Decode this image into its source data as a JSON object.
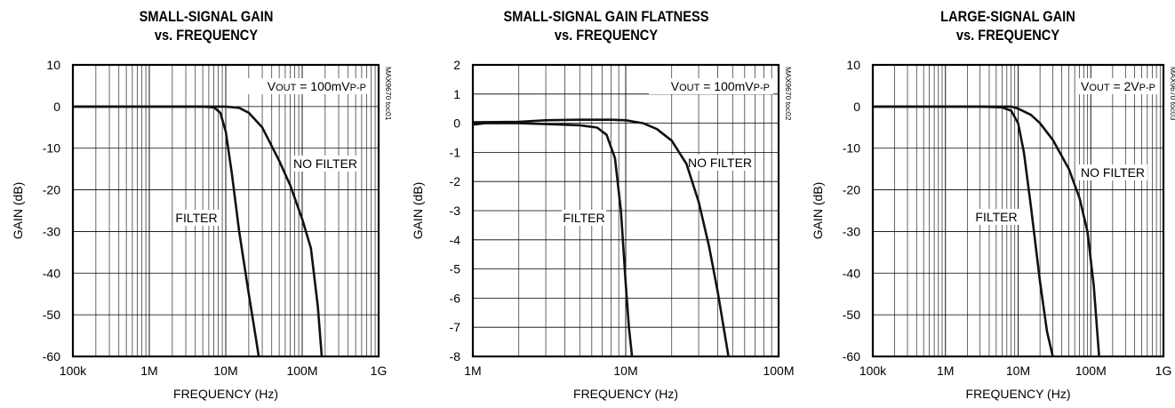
{
  "chart_data": [
    {
      "type": "line",
      "title": [
        "SMALL-SIGNAL GAIN",
        "vs. FREQUENCY"
      ],
      "xlabel": "FREQUENCY (Hz)",
      "ylabel": "GAIN (dB)",
      "x_scale": "log",
      "xlim": [
        100000,
        1000000000
      ],
      "ylim": [
        -60,
        10
      ],
      "x_ticks": [
        100000,
        1000000,
        10000000,
        100000000,
        1000000000
      ],
      "x_tick_labels": [
        "100k",
        "1M",
        "10M",
        "100M",
        "1G"
      ],
      "y_ticks": [
        10,
        0,
        -10,
        -20,
        -30,
        -40,
        -50,
        -60
      ],
      "y_tick_labels": [
        "10",
        "0",
        "-10",
        "-20",
        "-30",
        "-40",
        "-50",
        "-60"
      ],
      "grid": true,
      "annotation": {
        "prefix": "V",
        "sub1": "OUT",
        "mid": " = 100mV",
        "sub2": "P-P"
      },
      "code": "MAX9670 toc01",
      "series": [
        {
          "name": "FILTER",
          "x": [
            100000,
            2000000,
            5000000,
            7000000,
            8500000,
            10000000,
            12000000,
            15000000,
            20000000,
            25000000,
            27000000
          ],
          "y": [
            0,
            0,
            0,
            -0.2,
            -1.5,
            -6,
            -16,
            -30,
            -45,
            -56,
            -60
          ]
        },
        {
          "name": "NO FILTER",
          "x": [
            100000,
            5000000,
            10000000,
            15000000,
            20000000,
            30000000,
            50000000,
            70000000,
            100000000,
            130000000,
            160000000,
            180000000
          ],
          "y": [
            0,
            0,
            0,
            -0.3,
            -1.5,
            -5,
            -13,
            -19,
            -27,
            -34,
            -48,
            -60
          ]
        }
      ],
      "series_labels": [
        "FILTER",
        "NO FILTER"
      ]
    },
    {
      "type": "line",
      "title": [
        "SMALL-SIGNAL GAIN FLATNESS",
        "vs. FREQUENCY"
      ],
      "xlabel": "FREQUENCY (Hz)",
      "ylabel": "GAIN (dB)",
      "x_scale": "log",
      "xlim": [
        1000000,
        100000000
      ],
      "ylim": [
        -8,
        2
      ],
      "x_ticks": [
        1000000,
        10000000,
        100000000
      ],
      "x_tick_labels": [
        "1M",
        "10M",
        "100M"
      ],
      "y_ticks": [
        2,
        1,
        0,
        -1,
        -2,
        -3,
        -4,
        -5,
        -6,
        -7,
        -8
      ],
      "y_tick_labels": [
        "2",
        "1",
        "0",
        "-1",
        "-2",
        "-3",
        "-4",
        "-5",
        "-6",
        "-7",
        "-8"
      ],
      "grid": true,
      "annotation": {
        "prefix": "V",
        "sub1": "OUT",
        "mid": " = 100mV",
        "sub2": "P-P"
      },
      "code": "MAX9670 toc02",
      "series": [
        {
          "name": "FILTER",
          "x": [
            1000000,
            1200000,
            2000000,
            3000000,
            5000000,
            6500000,
            7500000,
            8500000,
            9300000,
            10000000,
            10500000,
            11000000
          ],
          "y": [
            -0.05,
            0,
            0,
            -0.03,
            -0.07,
            -0.15,
            -0.4,
            -1.2,
            -3,
            -5.5,
            -7,
            -8
          ]
        },
        {
          "name": "NO FILTER",
          "x": [
            1000000,
            2000000,
            3000000,
            5000000,
            8000000,
            10000000,
            13000000,
            16000000,
            20000000,
            25000000,
            30000000,
            35000000,
            40000000,
            47000000
          ],
          "y": [
            0.03,
            0.05,
            0.1,
            0.12,
            0.12,
            0.1,
            0,
            -0.2,
            -0.6,
            -1.4,
            -2.7,
            -4.2,
            -5.8,
            -8
          ]
        }
      ],
      "series_labels": [
        "FILTER",
        "NO FILTER"
      ]
    },
    {
      "type": "line",
      "title": [
        "LARGE-SIGNAL GAIN",
        "vs. FREQUENCY"
      ],
      "xlabel": "FREQUENCY (Hz)",
      "ylabel": "GAIN (dB)",
      "x_scale": "log",
      "xlim": [
        100000,
        1000000000
      ],
      "ylim": [
        -60,
        10
      ],
      "x_ticks": [
        100000,
        1000000,
        10000000,
        100000000,
        1000000000
      ],
      "x_tick_labels": [
        "100k",
        "1M",
        "10M",
        "100M",
        "1G"
      ],
      "y_ticks": [
        10,
        0,
        -10,
        -20,
        -30,
        -40,
        -50,
        -60
      ],
      "y_tick_labels": [
        "10",
        "0",
        "-10",
        "-20",
        "-30",
        "-40",
        "-50",
        "-60"
      ],
      "grid": true,
      "annotation": {
        "prefix": "V",
        "sub1": "OUT",
        "mid": " = 2V",
        "sub2": "P-P"
      },
      "code": "MAX9670 toc03",
      "series": [
        {
          "name": "FILTER",
          "x": [
            100000,
            3000000,
            6000000,
            8000000,
            10000000,
            12000000,
            15000000,
            20000000,
            25000000,
            30000000
          ],
          "y": [
            0,
            0,
            -0.2,
            -1,
            -4,
            -11,
            -24,
            -42,
            -54,
            -60
          ]
        },
        {
          "name": "NO FILTER",
          "x": [
            100000,
            5000000,
            8000000,
            10000000,
            15000000,
            20000000,
            30000000,
            50000000,
            70000000,
            90000000,
            110000000,
            130000000
          ],
          "y": [
            0,
            0,
            0,
            -0.5,
            -2,
            -4,
            -8,
            -15,
            -22,
            -30,
            -43,
            -60
          ]
        }
      ],
      "series_labels": [
        "FILTER",
        "NO FILTER"
      ]
    }
  ]
}
